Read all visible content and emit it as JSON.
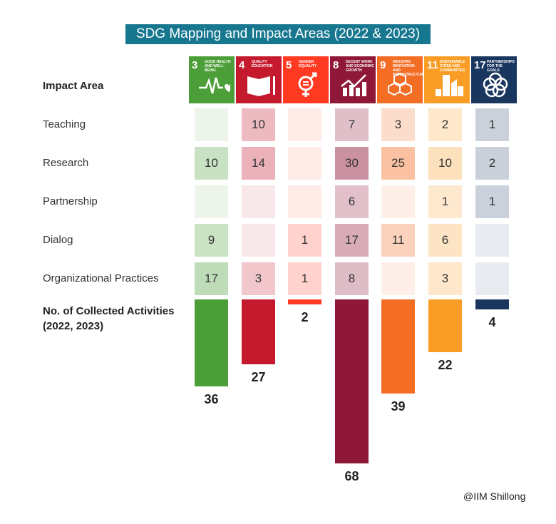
{
  "title": "SDG Mapping and Impact Areas (2022 & 2023)",
  "header_label": "Impact Area",
  "totals_label_line1": "No. of Collected Activities",
  "totals_label_line2": "(2022, 2023)",
  "credit": "@IIM Shillong",
  "chart_data": {
    "type": "table",
    "title": "SDG Mapping and Impact Areas (2022 & 2023)",
    "goals": [
      {
        "number": "3",
        "name": "Good Health and Well-Being",
        "color": "#4c9f38",
        "icon": "heartbeat-icon"
      },
      {
        "number": "4",
        "name": "Quality Education",
        "color": "#c5192d",
        "icon": "book-icon"
      },
      {
        "number": "5",
        "name": "Gender Equality",
        "color": "#ff3a21",
        "icon": "gender-equality-icon"
      },
      {
        "number": "8",
        "name": "Decent Work and Economic Growth",
        "color": "#8f1838",
        "icon": "growth-chart-icon"
      },
      {
        "number": "9",
        "name": "Industry, Innovation and Infrastructure",
        "color": "#f36d25",
        "icon": "cubes-icon"
      },
      {
        "number": "11",
        "name": "Sustainable Cities and Communities",
        "color": "#f99d26",
        "icon": "city-icon"
      },
      {
        "number": "17",
        "name": "Partnerships for the Goals",
        "color": "#19365f",
        "icon": "rings-icon"
      }
    ],
    "rows": [
      {
        "label": "Teaching",
        "values": [
          null,
          10,
          null,
          7,
          3,
          2,
          1
        ]
      },
      {
        "label": "Research",
        "values": [
          10,
          14,
          null,
          30,
          25,
          10,
          2
        ]
      },
      {
        "label": "Partnership",
        "values": [
          null,
          null,
          null,
          6,
          null,
          1,
          1
        ]
      },
      {
        "label": "Dialog",
        "values": [
          9,
          null,
          1,
          17,
          11,
          6,
          null
        ]
      },
      {
        "label": "Organizational Practices",
        "values": [
          17,
          3,
          1,
          8,
          null,
          3,
          null
        ]
      }
    ],
    "totals": [
      36,
      27,
      2,
      68,
      39,
      22,
      4
    ]
  }
}
